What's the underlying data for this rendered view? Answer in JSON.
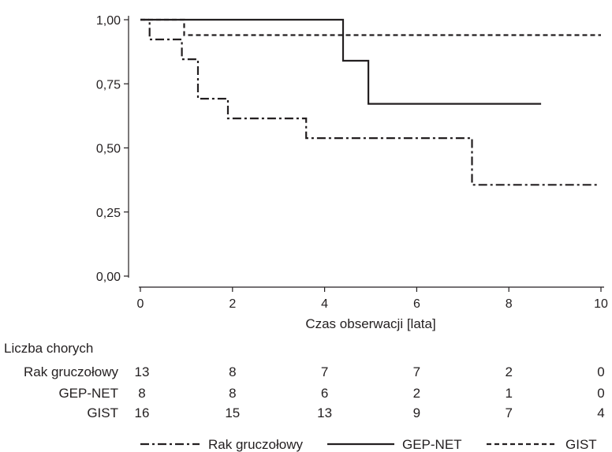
{
  "chart_data": {
    "type": "line",
    "xlabel": "Czas obserwacji [lata]",
    "ylabel": "",
    "xlim": [
      0,
      10
    ],
    "ylim": [
      0,
      1
    ],
    "x_ticks": [
      "0",
      "2",
      "4",
      "6",
      "8",
      "10"
    ],
    "y_ticks": [
      "0,00",
      "0,25",
      "0,50",
      "0,75",
      "1,00"
    ],
    "grid": false,
    "legend_position": "bottom",
    "series": [
      {
        "name": "Rak gruczołowy",
        "dash": "dash-dot",
        "x": [
          0,
          0.2,
          0.2,
          0.9,
          0.9,
          1.25,
          1.25,
          1.9,
          1.9,
          3.6,
          3.6,
          7.2,
          7.2,
          9.95
        ],
        "y": [
          1.0,
          1.0,
          0.923,
          0.923,
          0.846,
          0.846,
          0.692,
          0.692,
          0.615,
          0.615,
          0.538,
          0.538,
          0.356,
          0.356
        ]
      },
      {
        "name": "GEP-NET",
        "dash": "solid",
        "x": [
          0,
          4.4,
          4.4,
          4.95,
          4.95,
          8.7
        ],
        "y": [
          1.0,
          1.0,
          0.84,
          0.84,
          0.672,
          0.672
        ]
      },
      {
        "name": "GIST",
        "dash": "dashed",
        "x": [
          0,
          0.95,
          0.95,
          10
        ],
        "y": [
          1.0,
          1.0,
          0.94,
          0.94
        ]
      }
    ],
    "risk_table": {
      "title": "Liczba chorych",
      "rows": [
        {
          "label": "Rak gruczołowy",
          "values": [
            "13",
            "8",
            "7",
            "7",
            "2",
            "0"
          ]
        },
        {
          "label": "GEP-NET",
          "values": [
            "8",
            "8",
            "6",
            "2",
            "1",
            "0"
          ]
        },
        {
          "label": "GIST",
          "values": [
            "16",
            "15",
            "13",
            "9",
            "7",
            "4"
          ]
        }
      ]
    }
  }
}
